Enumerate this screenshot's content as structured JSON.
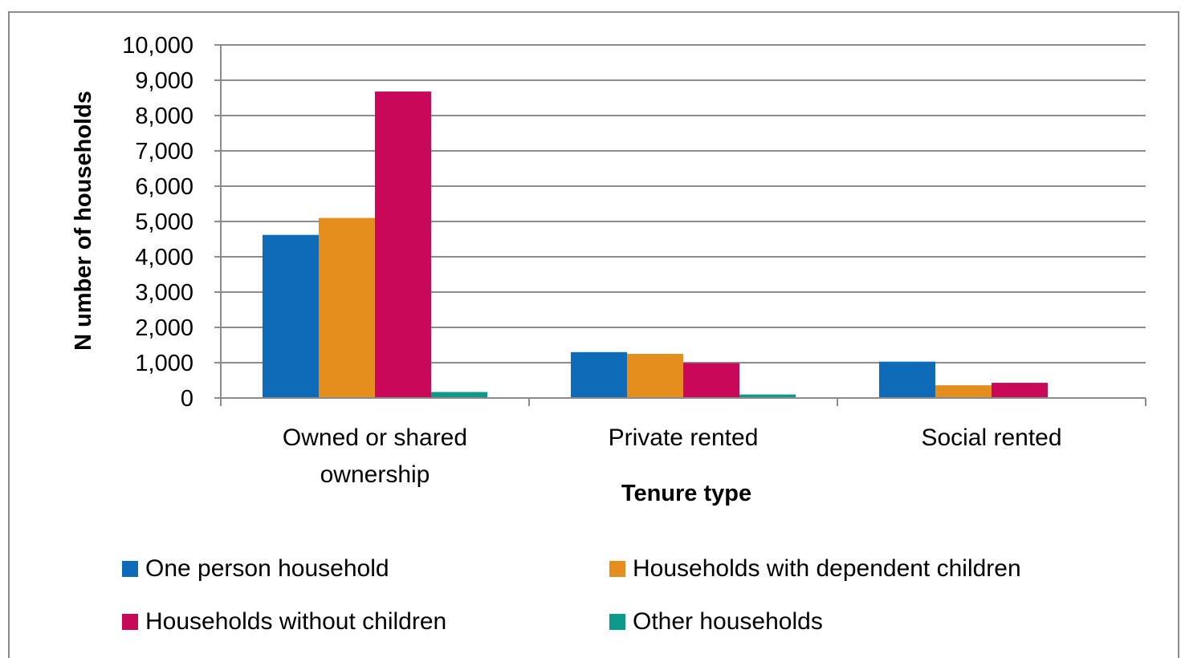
{
  "chart_data": {
    "type": "bar",
    "categories": [
      "Owned or shared ownership",
      "Private rented",
      "Social rented"
    ],
    "category_lines": [
      [
        "Owned or shared",
        "ownership"
      ],
      [
        "Private rented"
      ],
      [
        "Social rented"
      ]
    ],
    "series": [
      {
        "name": "One person household",
        "color": "#0e6bb8",
        "values": [
          4620,
          1300,
          1030
        ]
      },
      {
        "name": "Households with dependent children",
        "color": "#e58e1d",
        "values": [
          5100,
          1250,
          360
        ]
      },
      {
        "name": "Households without children",
        "color": "#c9085a",
        "values": [
          8680,
          990,
          430
        ]
      },
      {
        "name": "Other households",
        "color": "#0d9a8b",
        "values": [
          170,
          100,
          20
        ]
      }
    ],
    "xlabel": "Tenure type",
    "ylabel": "N umber of households",
    "ylim": [
      0,
      10000
    ],
    "yticks": [
      "0",
      "1,000",
      "2,000",
      "3,000",
      "4,000",
      "5,000",
      "6,000",
      "7,000",
      "8,000",
      "9,000",
      "10,000"
    ],
    "grid": true,
    "legend_position": "bottom"
  }
}
